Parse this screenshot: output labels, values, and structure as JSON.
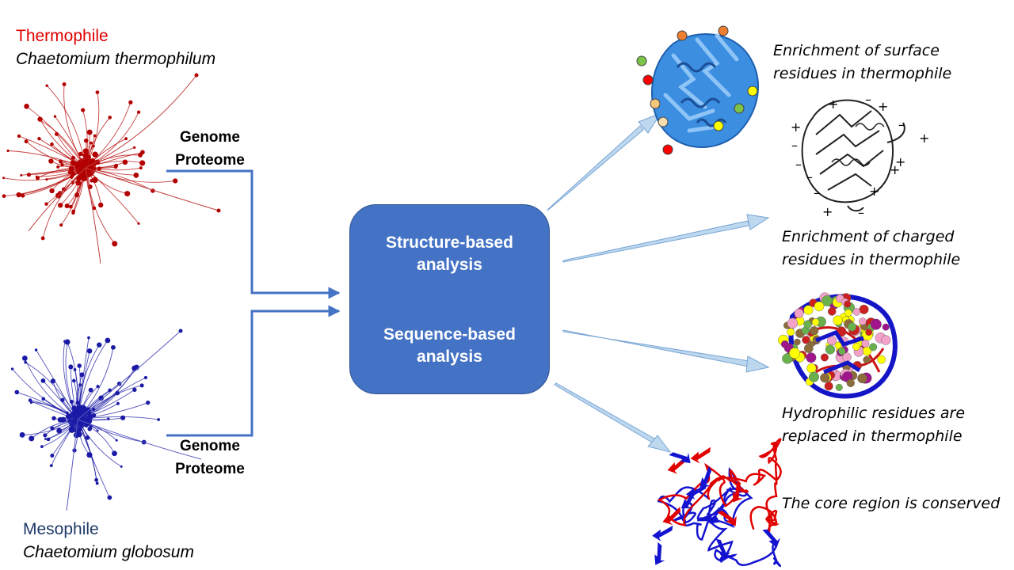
{
  "thermophile": {
    "type": "Thermophile",
    "species": "Chaetomium thermophilum",
    "color": "#c00000"
  },
  "mesophile": {
    "type": "Mesophile",
    "species": "Chaetomium globosum",
    "color": "#1f1fa8"
  },
  "inputs": {
    "top": {
      "line1": "Genome",
      "line2": "Proteome"
    },
    "bottom": {
      "line1": "Genome",
      "line2": "Proteome"
    }
  },
  "analysis_box": {
    "structure": {
      "line1": "Structure-based",
      "line2": "analysis"
    },
    "sequence": {
      "line1": "Sequence-based",
      "line2": "analysis"
    },
    "color": "#4472c4"
  },
  "findings": {
    "surface": {
      "line1": "Enrichment of surface",
      "line2": "residues in thermophile"
    },
    "charged": {
      "line1": "Enrichment of charged",
      "line2": "residues in thermophile"
    },
    "hydrophilic": {
      "line1": "Hydrophilic residues are",
      "line2": "replaced in thermophile"
    },
    "core": {
      "line1": "The core region is conserved"
    }
  },
  "colors": {
    "connector": "#4472c4",
    "arrow_fill": "#bdd7ee",
    "arrow_stroke": "#7aa6d4"
  }
}
